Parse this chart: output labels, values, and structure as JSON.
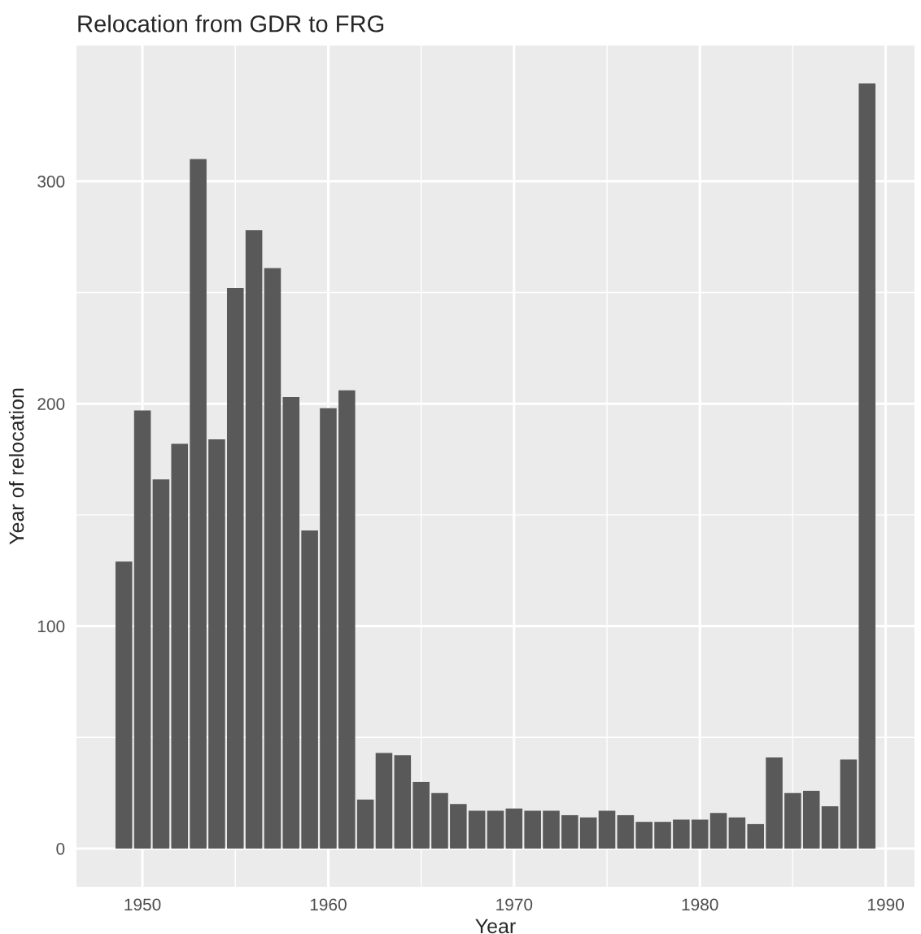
{
  "chart_data": {
    "type": "bar",
    "title": "Relocation from GDR to FRG",
    "xlabel": "Year",
    "ylabel": "Year of relocation",
    "x": [
      1949,
      1950,
      1951,
      1952,
      1953,
      1954,
      1955,
      1956,
      1957,
      1958,
      1959,
      1960,
      1961,
      1962,
      1963,
      1964,
      1965,
      1966,
      1967,
      1968,
      1969,
      1970,
      1971,
      1972,
      1973,
      1974,
      1975,
      1976,
      1977,
      1978,
      1979,
      1980,
      1981,
      1982,
      1983,
      1984,
      1985,
      1986,
      1987,
      1988,
      1989
    ],
    "values": [
      129,
      197,
      166,
      182,
      310,
      184,
      252,
      278,
      261,
      203,
      143,
      198,
      206,
      22,
      43,
      42,
      30,
      25,
      20,
      17,
      17,
      18,
      17,
      17,
      15,
      14,
      17,
      15,
      12,
      12,
      13,
      13,
      16,
      14,
      11,
      41,
      25,
      26,
      19,
      40,
      344
    ],
    "color": "#595959",
    "xlim": [
      1946.45,
      1991.55
    ],
    "xticks": [
      1950,
      1960,
      1970,
      1980,
      1990
    ],
    "ylim": [
      -17.2,
      361
    ],
    "yticks": [
      0,
      100,
      200,
      300
    ],
    "grid": true
  }
}
